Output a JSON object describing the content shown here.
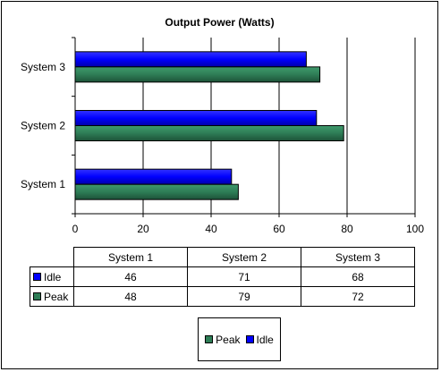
{
  "chart_data": {
    "type": "bar",
    "orientation": "horizontal",
    "title": "Output Power (Watts)",
    "categories": [
      "System 1",
      "System 2",
      "System 3"
    ],
    "series": [
      {
        "name": "Idle",
        "values": [
          46,
          71,
          68
        ],
        "color": "#0000ff"
      },
      {
        "name": "Peak",
        "values": [
          48,
          79,
          72
        ],
        "color": "#2e7d56"
      }
    ],
    "xlim": [
      0,
      100
    ],
    "x_ticks": [
      "0",
      "20",
      "40",
      "60",
      "80",
      "100"
    ],
    "grid": "vertical",
    "data_table": true,
    "legend_position": "bottom",
    "legend_order": [
      "Peak",
      "Idle"
    ]
  }
}
